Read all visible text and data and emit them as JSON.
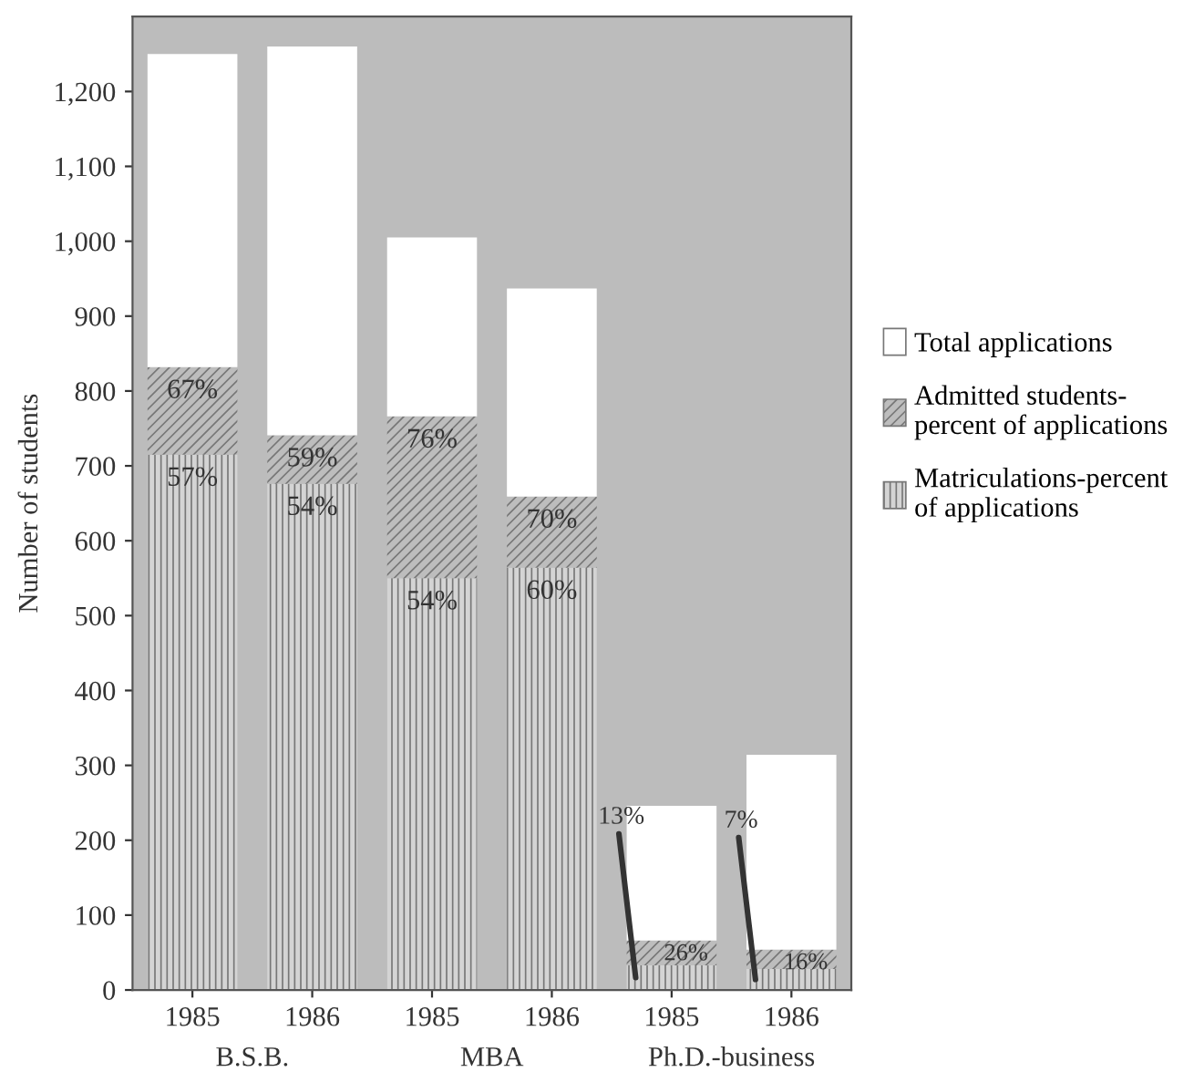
{
  "chart_data": {
    "type": "bar",
    "ylabel": "Number of students",
    "stacked": true,
    "categories": [
      "1985",
      "1986",
      "1985",
      "1986",
      "1985",
      "1986"
    ],
    "series": [
      {
        "name": "Matriculations-percent of applications",
        "color": "#d4d4d4",
        "values": [
          715,
          676,
          550,
          564,
          33,
          28
        ]
      },
      {
        "name": "Admitted students-percent of applications",
        "color": "#bdbdbd",
        "values": [
          117,
          65,
          216,
          95,
          33,
          26
        ]
      },
      {
        "name": "Total applications",
        "color": "#ffffff",
        "values": [
          418,
          519,
          239,
          278,
          180,
          260
        ]
      }
    ],
    "ylim": [
      0,
      1300
    ],
    "yticks": [
      0,
      100,
      200,
      300,
      400,
      500,
      600,
      700,
      800,
      900,
      {
        "value": 1000,
        "label": "1,000"
      },
      {
        "value": 1100,
        "label": "1,100"
      },
      {
        "value": 1200,
        "label": "1,200"
      }
    ],
    "legend": "right",
    "grid": false,
    "annotations": [
      "B.S.B.",
      "MBA",
      "Ph.D.-business",
      "67%",
      "57%",
      "59%",
      "54%",
      "76%",
      "54%",
      "70%",
      "60%",
      "26%",
      "13%",
      "16%",
      "7%"
    ]
  }
}
